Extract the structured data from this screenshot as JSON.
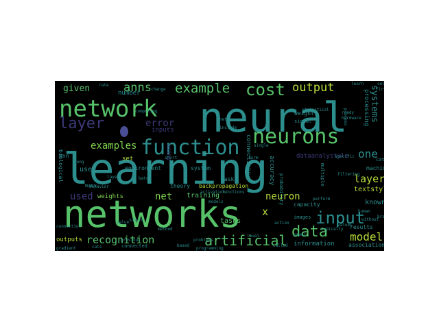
{
  "wordcloud": {
    "words": [
      {
        "text": "learning",
        "color": "#2d8e8e"
      },
      {
        "text": "neural",
        "color": "#2d8e8e"
      },
      {
        "text": "networks",
        "color": "#57c26a"
      },
      {
        "text": "network",
        "color": "#57c26a"
      },
      {
        "text": "function",
        "color": "#2d8e8e"
      },
      {
        "text": "neurons",
        "color": "#57c26a"
      },
      {
        "text": "cost",
        "color": "#57c26a"
      },
      {
        "text": "input",
        "color": "#2d8e8e"
      },
      {
        "text": "data",
        "color": "#57c26a"
      },
      {
        "text": "artificial",
        "color": "#57c26a"
      },
      {
        "text": "recognition",
        "color": "#57c26a"
      },
      {
        "text": "example",
        "color": "#57c26a"
      },
      {
        "text": "layer",
        "color": "#3d3a7a"
      },
      {
        "text": "output",
        "color": "#b7dc3a"
      },
      {
        "text": "model",
        "color": "#b7dc3a"
      },
      {
        "text": "anns",
        "color": "#57c26a"
      },
      {
        "text": "error",
        "color": "#3d3a7a"
      },
      {
        "text": "examples",
        "color": "#7fd34e"
      },
      {
        "text": "layers",
        "color": "#b7dc3a"
      },
      {
        "text": "one",
        "color": "#2d8e8e"
      },
      {
        "text": "neuron",
        "color": "#b7dc3a"
      },
      {
        "text": "given",
        "color": "#57c26a"
      },
      {
        "text": "used",
        "color": "#3d3a7a"
      },
      {
        "text": "net",
        "color": "#7fd34e"
      },
      {
        "text": "systems",
        "color": "#2d8e8e"
      },
      {
        "text": "dataanalystyle",
        "color": "#3d3a7a"
      },
      {
        "text": "x",
        "color": "#b7dc3a"
      },
      {
        "text": "textstyle",
        "color": "#b7dc3a"
      },
      {
        "text": "connections",
        "color": "#2d8e8e"
      },
      {
        "text": "accuracy",
        "color": "#2d8e8e"
      },
      {
        "text": "tasks",
        "color": "#57c26a"
      },
      {
        "text": "training",
        "color": "#57c26a"
      },
      {
        "text": "outputs",
        "color": "#b7dc3a"
      },
      {
        "text": "information",
        "color": "#2d8e8e"
      },
      {
        "text": "known",
        "color": "#2d8e8e"
      },
      {
        "text": "weights",
        "color": "#7fd34e"
      },
      {
        "text": "processing",
        "color": "#2d8e8e"
      },
      {
        "text": "inputs",
        "color": "#3d3a7a"
      },
      {
        "text": "number",
        "color": "#2d8e8e"
      },
      {
        "text": "set",
        "color": "#b7dc3a"
      },
      {
        "text": "environment",
        "color": "#2d8e8e"
      },
      {
        "text": "machine",
        "color": "#2d8e8e"
      },
      {
        "text": "biological",
        "color": "#2d8e8e"
      },
      {
        "text": "associations",
        "color": "#2d8e8e"
      },
      {
        "text": "capacity",
        "color": "#2d8e8e"
      },
      {
        "text": "backpropagation",
        "color": "#b7dc3a"
      },
      {
        "text": "probability",
        "color": "#2d8e8e"
      },
      {
        "text": "multiple",
        "color": "#2d8e8e"
      },
      {
        "text": "weight",
        "color": "#2d8e8e"
      },
      {
        "text": "results",
        "color": "#2d8e8e"
      },
      {
        "text": "system",
        "color": "#2d8e8e"
      },
      {
        "text": "theory",
        "color": "#2d8e8e"
      },
      {
        "text": "task",
        "color": "#2d8e8e"
      },
      {
        "text": "use",
        "color": "#2d8e8e"
      },
      {
        "text": "ann",
        "color": "#2d8e8e"
      },
      {
        "text": "cat",
        "color": "#2d8e8e"
      },
      {
        "text": "many",
        "color": "#2d8e8e"
      },
      {
        "text": "signal",
        "color": "#2d8e8e"
      },
      {
        "text": "images",
        "color": "#2d8e8e"
      },
      {
        "text": "state",
        "color": "#2d8e8e"
      },
      {
        "text": "connected",
        "color": "#2d8e8e"
      },
      {
        "text": "without",
        "color": "#2d8e8e"
      },
      {
        "text": "computing",
        "color": "#2d8e8e"
      },
      {
        "text": "using",
        "color": "#3d3a7a"
      },
      {
        "text": "brain",
        "color": "#2d8e8e"
      },
      {
        "text": "human",
        "color": "#2d8e8e"
      },
      {
        "text": "first",
        "color": "#2d8e8e"
      },
      {
        "text": "self",
        "color": "#2d8e8e"
      },
      {
        "text": "learn",
        "color": "#2d8e8e"
      },
      {
        "text": "value",
        "color": "#2d8e8e"
      },
      {
        "text": "action",
        "color": "#2d8e8e"
      },
      {
        "text": "power",
        "color": "#2d8e8e"
      },
      {
        "text": "connection",
        "color": "#2d8e8e"
      },
      {
        "text": "typically",
        "color": "#2d8e8e"
      },
      {
        "text": "values",
        "color": "#2d8e8e"
      },
      {
        "text": "based",
        "color": "#2d8e8e"
      },
      {
        "text": "called",
        "color": "#2d8e8e"
      },
      {
        "text": "form",
        "color": "#2d8e8e"
      },
      {
        "text": "rate",
        "color": "#2d8e8e"
      },
      {
        "text": "specific",
        "color": "#2d8e8e"
      },
      {
        "text": "activation",
        "color": "#2d8e8e"
      },
      {
        "text": "single",
        "color": "#2d8e8e"
      },
      {
        "text": "problems",
        "color": "#2d8e8e"
      },
      {
        "text": "short",
        "color": "#2d8e8e"
      },
      {
        "text": "long",
        "color": "#2d8e8e"
      },
      {
        "text": "level",
        "color": "#2d8e8e"
      },
      {
        "text": "method",
        "color": "#2d8e8e"
      },
      {
        "text": "ready",
        "color": "#2d8e8e"
      },
      {
        "text": "include",
        "color": "#2d8e8e"
      },
      {
        "text": "change",
        "color": "#2d8e8e"
      },
      {
        "text": "behavior",
        "color": "#2d8e8e"
      },
      {
        "text": "gradient",
        "color": "#2d8e8e"
      },
      {
        "text": "hardware",
        "color": "#2d8e8e"
      },
      {
        "text": "models",
        "color": "#2d8e8e"
      },
      {
        "text": "layer",
        "color": "#2d8e8e"
      },
      {
        "text": "perform",
        "color": "#2d8e8e"
      },
      {
        "text": "filtering",
        "color": "#2d8e8e"
      },
      {
        "text": "process",
        "color": "#2d8e8e"
      },
      {
        "text": "programming",
        "color": "#2d8e8e"
      },
      {
        "text": "functions",
        "color": "#2d8e8e"
      },
      {
        "text": "nets",
        "color": "#2d8e8e"
      },
      {
        "text": "batch",
        "color": "#2d8e8e"
      },
      {
        "text": "cats",
        "color": "#2d8e8e"
      },
      {
        "text": "statistical",
        "color": "#2d8e8e"
      },
      {
        "text": "previous",
        "color": "#2d8e8e"
      }
    ]
  }
}
